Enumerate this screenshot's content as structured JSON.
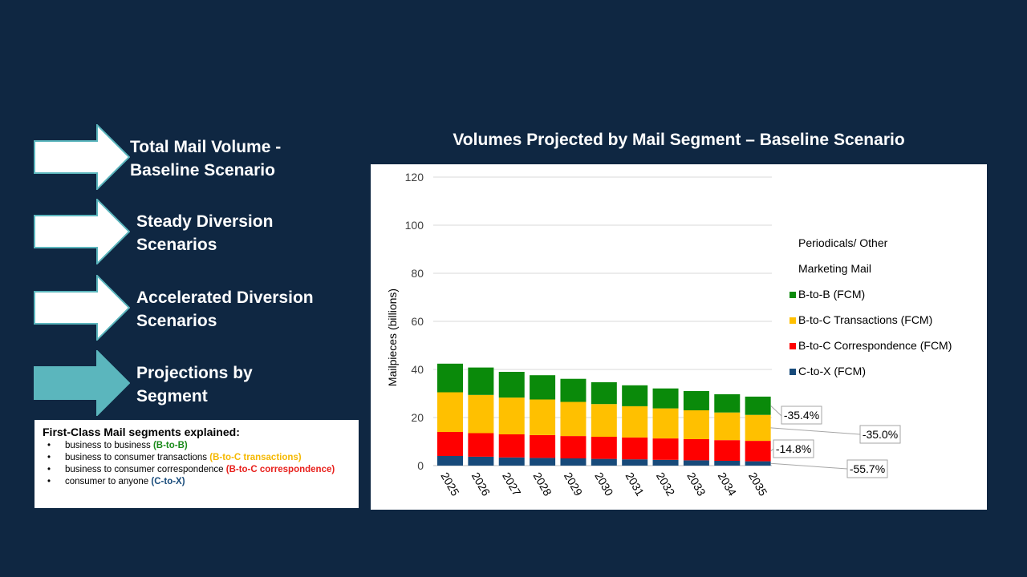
{
  "nav": {
    "items": [
      {
        "label": "Total Mail Volume -\nBaseline Scenario",
        "fill": "#ffffff"
      },
      {
        "label": "Steady Diversion\nScenarios",
        "fill": "#ffffff"
      },
      {
        "label": "Accelerated Diversion\nScenarios",
        "fill": "#ffffff"
      },
      {
        "label": "Projections by\nSegment",
        "fill": "#5bb6bd"
      }
    ]
  },
  "explain": {
    "title": "First-Class Mail segments explained:",
    "items": [
      {
        "text": "business to business ",
        "code": "(B-to-B)",
        "color": "#1a8a1a"
      },
      {
        "text": "business to consumer transactions ",
        "code": "(B-to-C transactions)",
        "color": "#f5b800"
      },
      {
        "text": "business to consumer correspondence ",
        "code": "(B-to-C correspondence)",
        "color": "#e8201c"
      },
      {
        "text": "consumer to anyone ",
        "code": "(C-to-X)",
        "color": "#174a7a"
      }
    ]
  },
  "chart_data": {
    "type": "bar",
    "stacked": true,
    "title": "Volumes Projected by Mail Segment – Baseline Scenario",
    "ylabel": "Mailpieces (billions)",
    "ylim": [
      0,
      120
    ],
    "yticks": [
      0,
      20,
      40,
      60,
      80,
      100,
      120
    ],
    "grid": true,
    "categories": [
      "2025",
      "2026",
      "2027",
      "2028",
      "2029",
      "2030",
      "2031",
      "2032",
      "2033",
      "2034",
      "2035"
    ],
    "series": [
      {
        "name": "C-to-X (FCM)",
        "color": "#174a7a",
        "values": [
          4.0,
          3.7,
          3.4,
          3.2,
          3.0,
          2.8,
          2.6,
          2.4,
          2.2,
          2.0,
          1.8
        ]
      },
      {
        "name": "B-to-C Correspondence (FCM)",
        "color": "#ff0000",
        "values": [
          10.0,
          9.8,
          9.6,
          9.5,
          9.3,
          9.2,
          9.1,
          8.9,
          8.8,
          8.6,
          8.5
        ]
      },
      {
        "name": "B-to-C Transactions (FCM)",
        "color": "#ffc000",
        "values": [
          16.5,
          15.9,
          15.3,
          14.8,
          14.2,
          13.6,
          13.0,
          12.5,
          12.0,
          11.5,
          10.8
        ]
      },
      {
        "name": "B-to-B (FCM)",
        "color": "#0a8a0a",
        "values": [
          11.9,
          11.4,
          10.7,
          10.1,
          9.6,
          9.1,
          8.7,
          8.3,
          8.0,
          7.6,
          7.6
        ]
      }
    ],
    "legend": [
      {
        "name": "Periodicals/ Other",
        "color": null
      },
      {
        "name": "Marketing Mail",
        "color": null
      },
      {
        "name": "B-to-B (FCM)",
        "color": "#0a8a0a"
      },
      {
        "name": "B-to-C Transactions (FCM)",
        "color": "#ffc000"
      },
      {
        "name": "B-to-C Correspondence (FCM)",
        "color": "#ff0000"
      },
      {
        "name": "C-to-X (FCM)",
        "color": "#174a7a"
      }
    ],
    "legend_position": "right",
    "annotations": [
      {
        "text": "-35.4%",
        "series": "B-to-B (FCM)"
      },
      {
        "text": "-35.0%",
        "series": "B-to-C Transactions (FCM)"
      },
      {
        "text": "-14.8%",
        "series": "B-to-C Correspondence (FCM)"
      },
      {
        "text": "-55.7%",
        "series": "C-to-X (FCM)"
      }
    ]
  }
}
